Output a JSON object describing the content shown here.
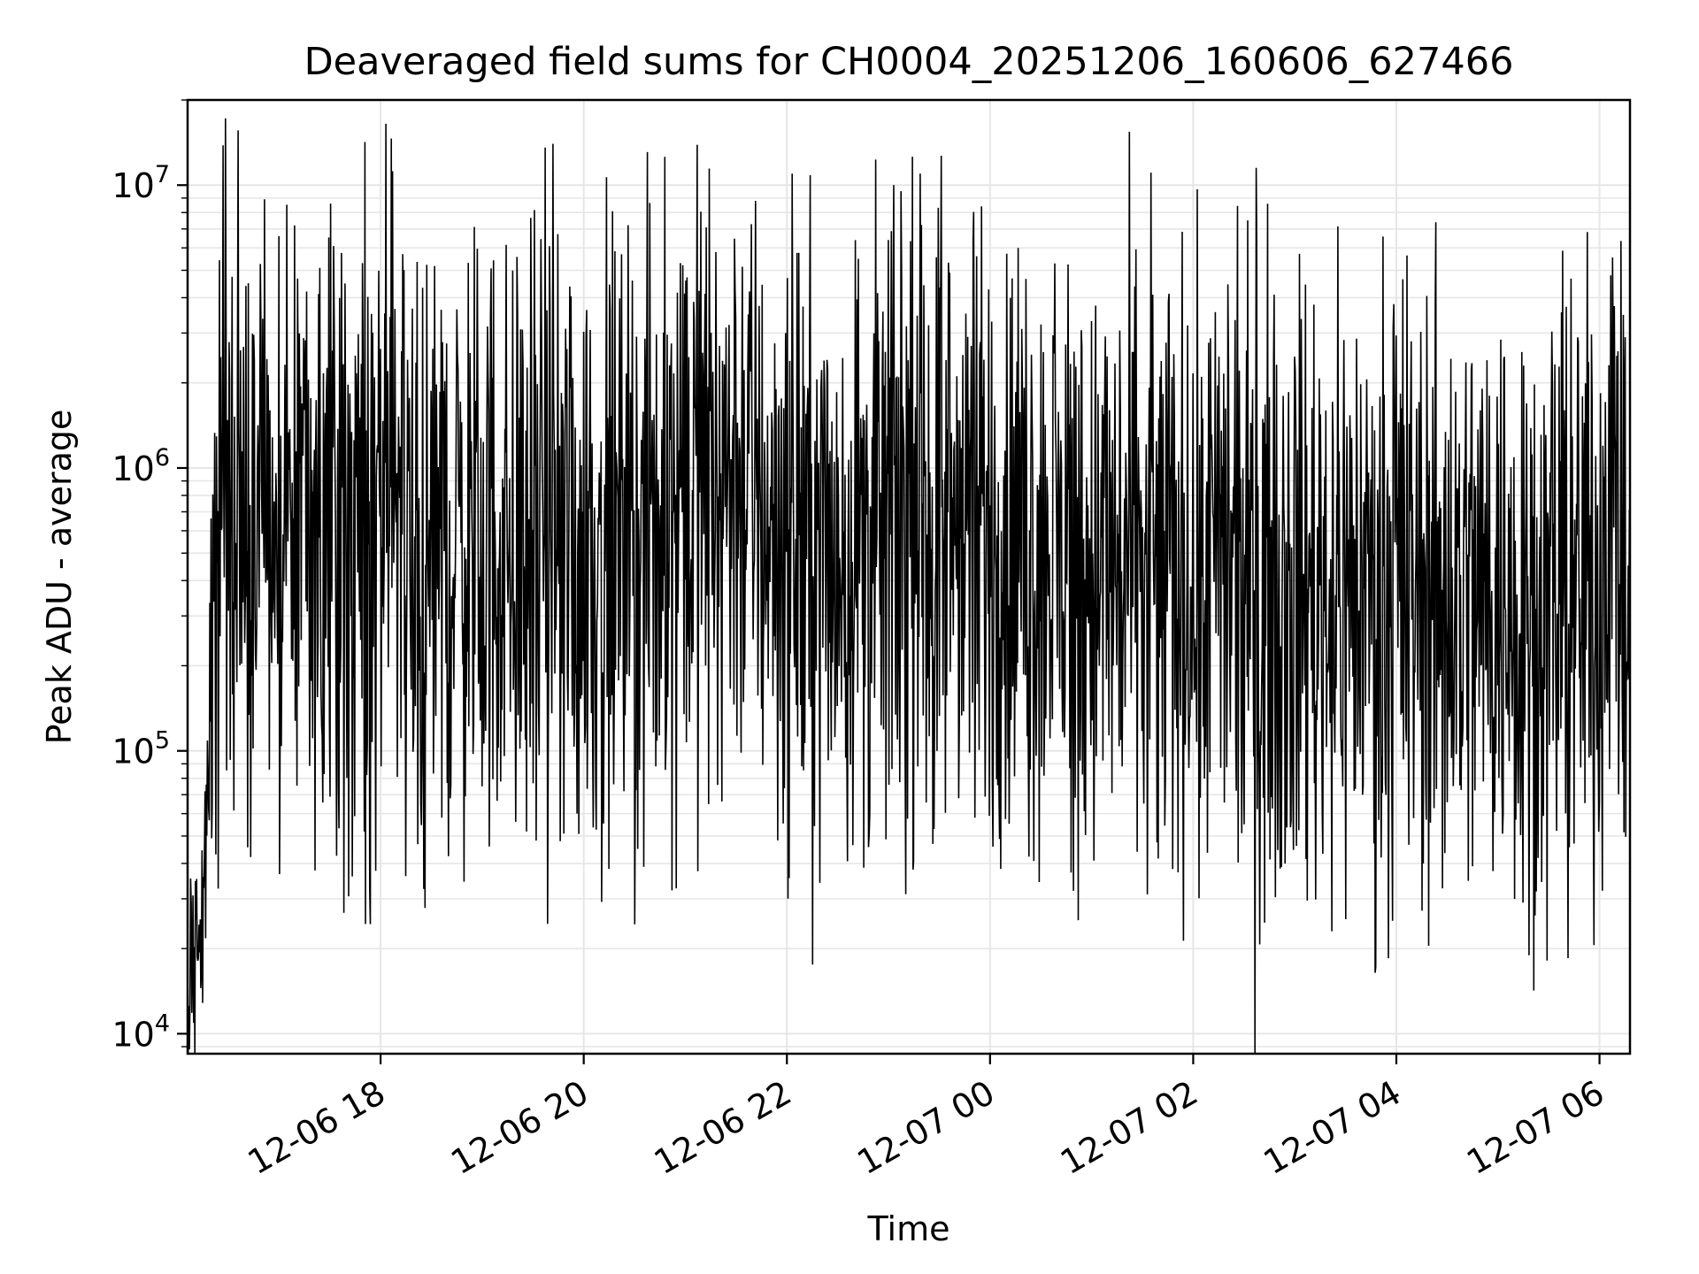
{
  "chart_data": {
    "type": "line",
    "title": "Deaveraged field sums for CH0004_20251206_160606_627466",
    "xlabel": "Time",
    "ylabel": "Peak ADU - average",
    "yscale": "log",
    "ylim": [
      8500,
      20000000
    ],
    "xlim_hours": [
      16.1,
      30.3
    ],
    "x_reference": "2025-12-06 00:00 (x values are hours since this time)",
    "grid": true,
    "line_color": "#000000",
    "grid_color": "#e6e6e6",
    "x_ticks": [
      {
        "value": 18,
        "label": "12-06 18"
      },
      {
        "value": 20,
        "label": "12-06 20"
      },
      {
        "value": 22,
        "label": "12-06 22"
      },
      {
        "value": 24,
        "label": "12-07 00"
      },
      {
        "value": 26,
        "label": "12-07 02"
      },
      {
        "value": 28,
        "label": "12-07 04"
      },
      {
        "value": 30,
        "label": "12-07 06"
      }
    ],
    "y_ticks": [
      {
        "value": 10000,
        "base": "10",
        "exp": "4"
      },
      {
        "value": 100000,
        "base": "10",
        "exp": "5"
      },
      {
        "value": 1000000,
        "base": "10",
        "exp": "6"
      },
      {
        "value": 10000000,
        "base": "10",
        "exp": "7"
      }
    ],
    "series": [
      {
        "name": "Deaveraged field sum",
        "baseline_points": [
          {
            "x": 16.1,
            "y": 13000
          },
          {
            "x": 16.25,
            "y": 25000
          },
          {
            "x": 16.33,
            "y": 280000
          },
          {
            "x": 16.42,
            "y": 800000
          },
          {
            "x": 16.6,
            "y": 700000
          },
          {
            "x": 17.0,
            "y": 650000
          },
          {
            "x": 17.5,
            "y": 550000
          },
          {
            "x": 18.0,
            "y": 500000
          },
          {
            "x": 18.5,
            "y": 500000
          },
          {
            "x": 19.0,
            "y": 550000
          },
          {
            "x": 19.5,
            "y": 500000
          },
          {
            "x": 20.0,
            "y": 500000
          },
          {
            "x": 20.5,
            "y": 480000
          },
          {
            "x": 21.0,
            "y": 900000
          },
          {
            "x": 21.5,
            "y": 1000000
          },
          {
            "x": 22.0,
            "y": 550000
          },
          {
            "x": 22.5,
            "y": 500000
          },
          {
            "x": 23.0,
            "y": 600000
          },
          {
            "x": 23.5,
            "y": 650000
          },
          {
            "x": 24.0,
            "y": 550000
          },
          {
            "x": 24.5,
            "y": 500000
          },
          {
            "x": 25.0,
            "y": 450000
          },
          {
            "x": 25.5,
            "y": 420000
          },
          {
            "x": 26.0,
            "y": 420000
          },
          {
            "x": 26.5,
            "y": 380000
          },
          {
            "x": 27.0,
            "y": 380000
          },
          {
            "x": 27.5,
            "y": 370000
          },
          {
            "x": 28.0,
            "y": 370000
          },
          {
            "x": 28.5,
            "y": 360000
          },
          {
            "x": 29.0,
            "y": 350000
          },
          {
            "x": 29.5,
            "y": 320000
          },
          {
            "x": 30.0,
            "y": 400000
          },
          {
            "x": 30.15,
            "y": 1200000
          },
          {
            "x": 30.3,
            "y": 90000
          }
        ],
        "spikes_high": [
          {
            "x": 16.7,
            "y": 4500000
          },
          {
            "x": 17.0,
            "y": 6600000
          },
          {
            "x": 17.4,
            "y": 5100000
          },
          {
            "x": 17.82,
            "y": 5300000
          },
          {
            "x": 18.12,
            "y": 11200000
          },
          {
            "x": 18.22,
            "y": 5700000
          },
          {
            "x": 19.7,
            "y": 14000000
          },
          {
            "x": 20.8,
            "y": 12600000
          },
          {
            "x": 20.95,
            "y": 5300000
          },
          {
            "x": 21.3,
            "y": 5800000
          },
          {
            "x": 23.0,
            "y": 6400000
          },
          {
            "x": 23.6,
            "y": 4900000
          },
          {
            "x": 25.6,
            "y": 4100000
          },
          {
            "x": 26.62,
            "y": 11500000
          },
          {
            "x": 26.8,
            "y": 4100000
          },
          {
            "x": 29.25,
            "y": 2300000
          },
          {
            "x": 30.25,
            "y": 2900000
          }
        ],
        "spikes_low": [
          {
            "x": 17.72,
            "y": 36000
          },
          {
            "x": 18.6,
            "y": 58000
          },
          {
            "x": 19.0,
            "y": 75000
          },
          {
            "x": 23.45,
            "y": 53000
          },
          {
            "x": 23.85,
            "y": 58000
          },
          {
            "x": 24.82,
            "y": 32000
          },
          {
            "x": 25.45,
            "y": 44000
          },
          {
            "x": 26.5,
            "y": 55000
          },
          {
            "x": 27.85,
            "y": 42000
          },
          {
            "x": 29.75,
            "y": 47000
          }
        ]
      }
    ]
  }
}
